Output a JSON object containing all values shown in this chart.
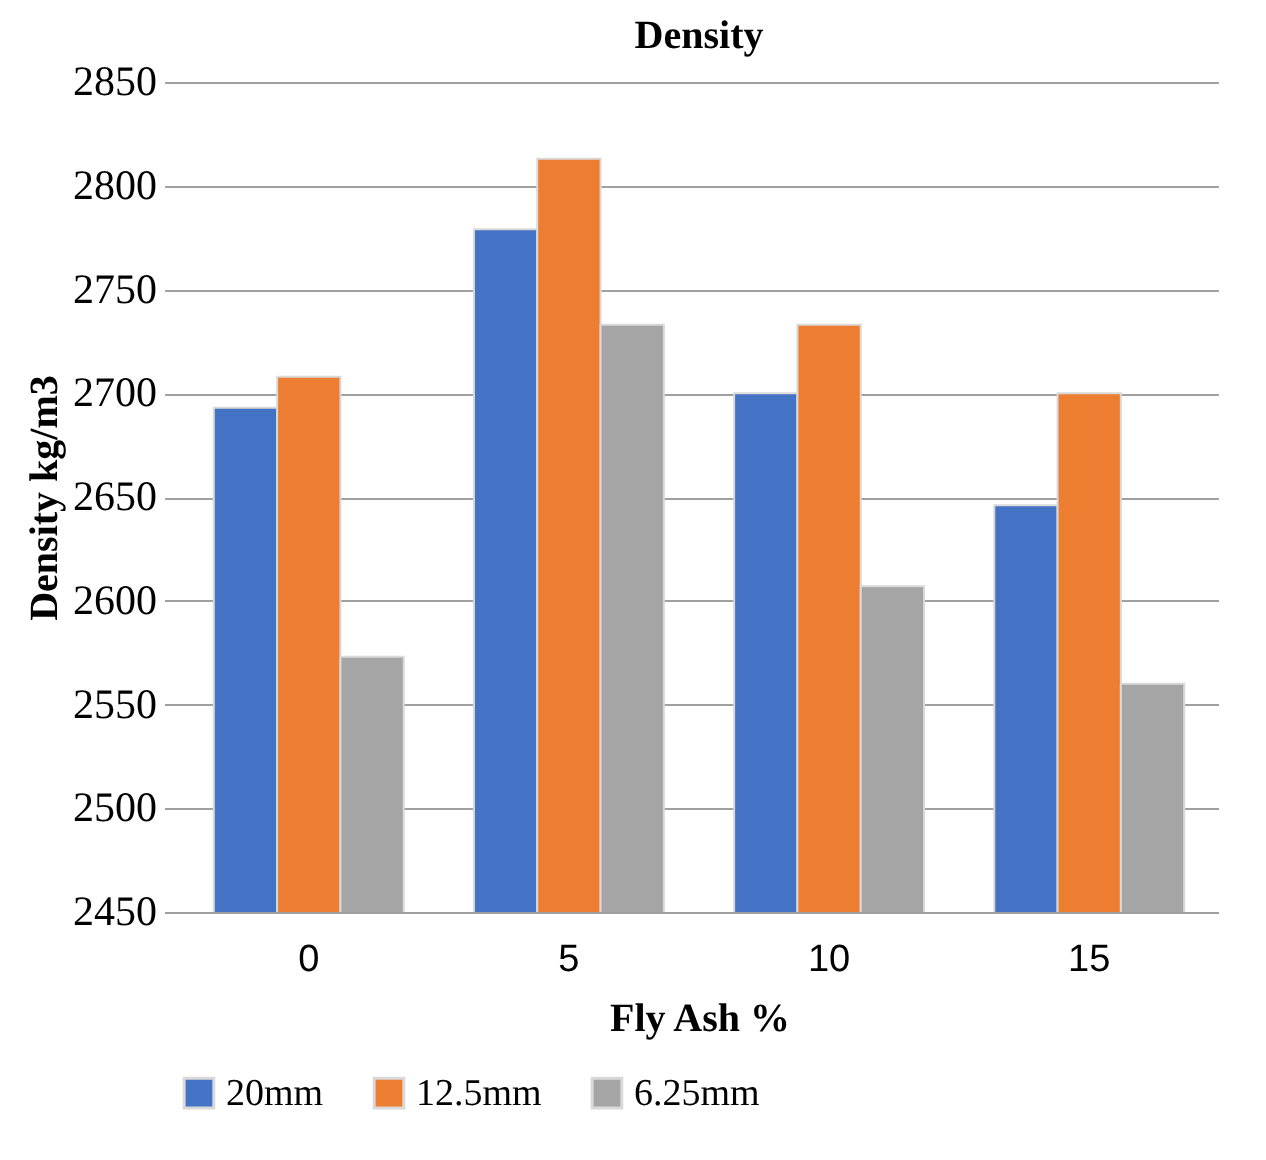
{
  "chart_data": {
    "type": "bar",
    "title": "Density",
    "xlabel": "Fly Ash %",
    "ylabel": "Density kg/m3",
    "categories": [
      "0",
      "5",
      "10",
      "15"
    ],
    "series": [
      {
        "name": "20mm",
        "color": "#4472c4",
        "values": [
          2693,
          2779,
          2700,
          2646
        ]
      },
      {
        "name": "12.5mm",
        "color": "#ed7d31",
        "values": [
          2708,
          2813,
          2733,
          2700
        ]
      },
      {
        "name": "6.25mm",
        "color": "#a5a5a5",
        "values": [
          2573,
          2733,
          2607,
          2560
        ]
      }
    ],
    "ylim": [
      2450,
      2850
    ],
    "yticks": [
      2450,
      2500,
      2550,
      2600,
      2650,
      2700,
      2750,
      2800,
      2850
    ],
    "grid": "y",
    "legend": "bottom"
  }
}
